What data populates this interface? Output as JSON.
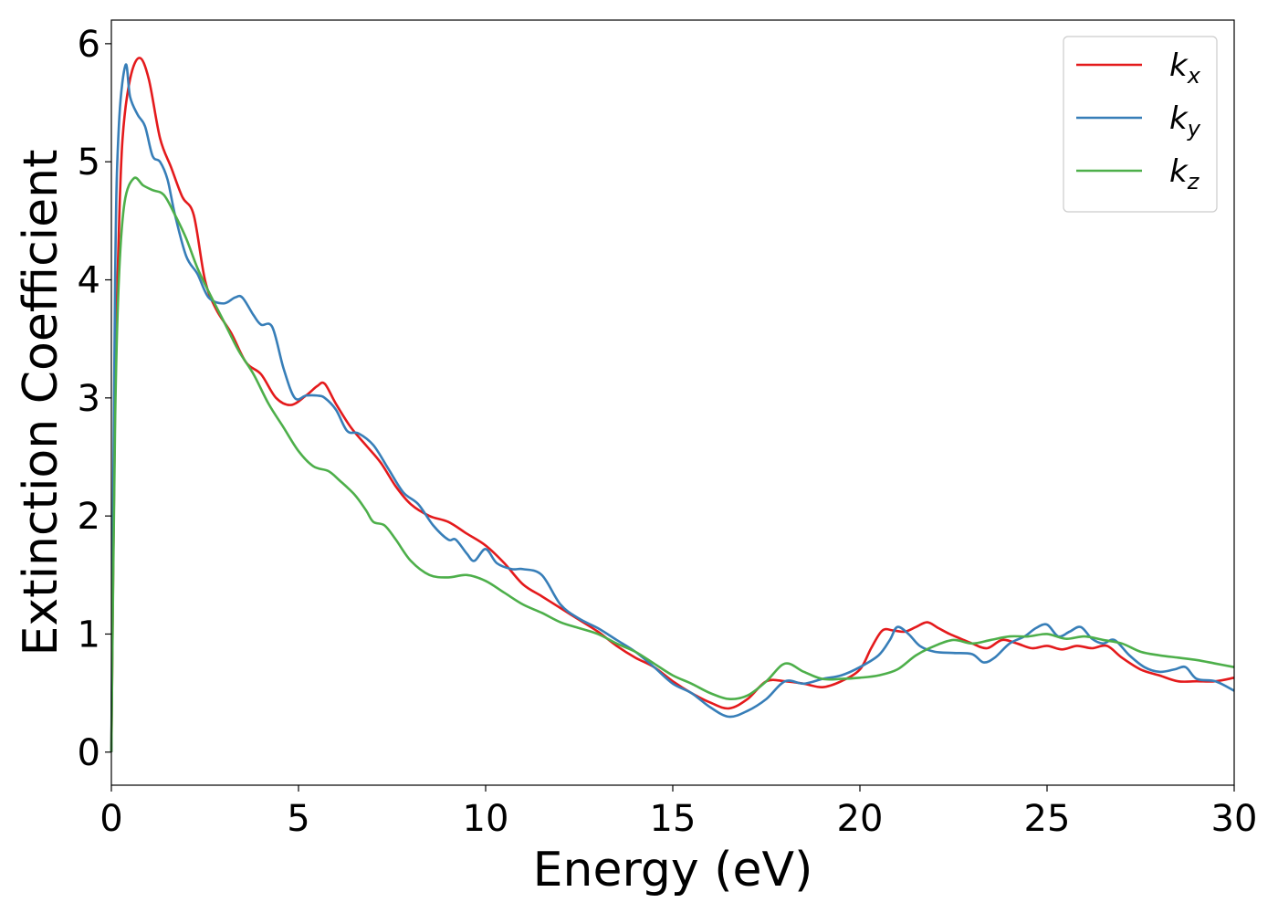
{
  "chart_data": {
    "type": "line",
    "xlabel": "Energy (eV)",
    "ylabel": "Extinction Coefficient",
    "xlim": [
      0,
      30
    ],
    "ylim": [
      -0.28,
      6.2
    ],
    "xticks": [
      0,
      5,
      10,
      15,
      20,
      25,
      30
    ],
    "yticks": [
      0,
      1,
      2,
      3,
      4,
      5,
      6
    ],
    "grid": false,
    "legend_position": "top-right",
    "series": [
      {
        "name": "k",
        "subscript": "x",
        "color": "#e41a1c",
        "x": [
          0,
          0.1,
          0.2,
          0.3,
          0.5,
          0.75,
          1.0,
          1.3,
          1.6,
          1.9,
          2.2,
          2.5,
          2.8,
          3.2,
          3.6,
          4.0,
          4.4,
          4.8,
          5.2,
          5.5,
          5.7,
          6.0,
          6.4,
          6.8,
          7.2,
          7.6,
          8.0,
          8.5,
          9.0,
          9.5,
          10.0,
          10.5,
          11.0,
          11.5,
          12.0,
          12.5,
          13.0,
          13.5,
          14.0,
          14.5,
          15.0,
          15.5,
          16.0,
          16.5,
          17.0,
          17.5,
          18.0,
          18.5,
          19.0,
          19.5,
          20.0,
          20.3,
          20.6,
          20.9,
          21.2,
          21.5,
          21.8,
          22.1,
          22.4,
          22.7,
          23.0,
          23.4,
          23.8,
          24.2,
          24.6,
          25.0,
          25.4,
          25.8,
          26.2,
          26.6,
          27.0,
          27.5,
          28.0,
          28.5,
          29.0,
          29.5,
          30.0
        ],
        "values": [
          0,
          3.0,
          4.4,
          5.2,
          5.7,
          5.88,
          5.7,
          5.2,
          4.95,
          4.7,
          4.55,
          4.0,
          3.75,
          3.55,
          3.3,
          3.2,
          3.0,
          2.94,
          3.02,
          3.1,
          3.12,
          2.95,
          2.75,
          2.6,
          2.45,
          2.25,
          2.1,
          2.0,
          1.95,
          1.85,
          1.75,
          1.6,
          1.42,
          1.32,
          1.22,
          1.12,
          1.02,
          0.9,
          0.8,
          0.72,
          0.6,
          0.5,
          0.42,
          0.37,
          0.45,
          0.6,
          0.6,
          0.58,
          0.55,
          0.6,
          0.7,
          0.88,
          1.03,
          1.03,
          1.02,
          1.06,
          1.1,
          1.05,
          1.0,
          0.96,
          0.92,
          0.88,
          0.95,
          0.92,
          0.88,
          0.9,
          0.87,
          0.9,
          0.88,
          0.9,
          0.8,
          0.7,
          0.65,
          0.6,
          0.6,
          0.6,
          0.63
        ]
      },
      {
        "name": "k",
        "subscript": "y",
        "color": "#377eb8",
        "x": [
          0,
          0.1,
          0.2,
          0.38,
          0.5,
          0.7,
          0.9,
          1.1,
          1.3,
          1.5,
          1.7,
          2.0,
          2.3,
          2.6,
          3.0,
          3.3,
          3.5,
          3.8,
          4.0,
          4.3,
          4.6,
          4.9,
          5.2,
          5.5,
          5.7,
          6.0,
          6.3,
          6.6,
          7.0,
          7.4,
          7.8,
          8.2,
          8.6,
          9.0,
          9.2,
          9.5,
          9.7,
          10.0,
          10.3,
          10.7,
          11.0,
          11.5,
          12.0,
          12.5,
          13.0,
          13.5,
          14.0,
          14.5,
          15.0,
          15.5,
          16.0,
          16.5,
          17.0,
          17.5,
          18.0,
          18.5,
          19.0,
          19.5,
          20.0,
          20.5,
          20.8,
          21.0,
          21.3,
          21.6,
          22.0,
          22.5,
          23.0,
          23.3,
          23.6,
          24.0,
          24.4,
          24.7,
          25.0,
          25.3,
          25.6,
          25.9,
          26.2,
          26.5,
          26.8,
          27.2,
          27.6,
          28.0,
          28.4,
          28.7,
          29.0,
          29.5,
          30.0
        ],
        "values": [
          0,
          4.0,
          5.3,
          5.82,
          5.55,
          5.4,
          5.3,
          5.05,
          5.0,
          4.85,
          4.55,
          4.2,
          4.05,
          3.85,
          3.8,
          3.85,
          3.85,
          3.7,
          3.62,
          3.6,
          3.25,
          3.0,
          3.02,
          3.02,
          3.0,
          2.9,
          2.72,
          2.7,
          2.6,
          2.4,
          2.2,
          2.1,
          1.92,
          1.8,
          1.8,
          1.68,
          1.62,
          1.72,
          1.6,
          1.55,
          1.55,
          1.5,
          1.25,
          1.13,
          1.05,
          0.95,
          0.85,
          0.72,
          0.58,
          0.5,
          0.38,
          0.3,
          0.35,
          0.45,
          0.6,
          0.58,
          0.62,
          0.65,
          0.72,
          0.82,
          0.95,
          1.06,
          1.0,
          0.9,
          0.85,
          0.84,
          0.83,
          0.76,
          0.8,
          0.92,
          0.98,
          1.05,
          1.08,
          0.98,
          1.02,
          1.06,
          0.96,
          0.92,
          0.95,
          0.82,
          0.72,
          0.68,
          0.7,
          0.72,
          0.62,
          0.6,
          0.52
        ]
      },
      {
        "name": "k",
        "subscript": "z",
        "color": "#4daf4a",
        "x": [
          0,
          0.1,
          0.2,
          0.35,
          0.6,
          0.85,
          1.1,
          1.4,
          1.7,
          2.0,
          2.3,
          2.6,
          3.0,
          3.4,
          3.8,
          4.2,
          4.6,
          5.0,
          5.4,
          5.8,
          6.1,
          6.5,
          6.8,
          7.0,
          7.3,
          7.6,
          8.0,
          8.5,
          9.0,
          9.5,
          10.0,
          10.5,
          11.0,
          11.5,
          12.0,
          12.5,
          13.0,
          13.5,
          14.0,
          14.5,
          15.0,
          15.5,
          16.0,
          16.5,
          17.0,
          17.5,
          18.0,
          18.5,
          19.0,
          19.5,
          20.0,
          20.5,
          21.0,
          21.5,
          22.0,
          22.5,
          23.0,
          23.5,
          24.0,
          24.5,
          25.0,
          25.5,
          26.0,
          26.5,
          27.0,
          27.5,
          28.0,
          28.5,
          29.0,
          29.5,
          30.0
        ],
        "values": [
          0,
          2.8,
          4.0,
          4.65,
          4.86,
          4.8,
          4.76,
          4.72,
          4.55,
          4.35,
          4.1,
          3.9,
          3.65,
          3.4,
          3.2,
          2.95,
          2.75,
          2.55,
          2.42,
          2.38,
          2.3,
          2.18,
          2.05,
          1.95,
          1.92,
          1.8,
          1.62,
          1.5,
          1.48,
          1.5,
          1.45,
          1.35,
          1.25,
          1.18,
          1.1,
          1.05,
          1.0,
          0.92,
          0.85,
          0.75,
          0.65,
          0.58,
          0.5,
          0.45,
          0.48,
          0.6,
          0.75,
          0.68,
          0.62,
          0.62,
          0.63,
          0.65,
          0.7,
          0.82,
          0.9,
          0.95,
          0.92,
          0.95,
          0.98,
          0.98,
          1.0,
          0.96,
          0.98,
          0.95,
          0.92,
          0.85,
          0.82,
          0.8,
          0.78,
          0.75,
          0.72
        ]
      }
    ]
  }
}
